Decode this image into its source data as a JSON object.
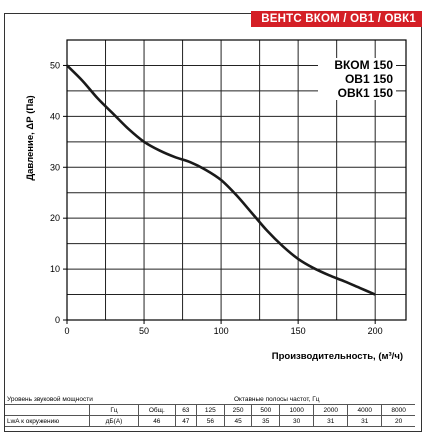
{
  "header_tag": "ВЕНТС ВКОМ / ОВ1 / ОВК1",
  "chart_data": {
    "type": "line",
    "xlabel": "Производительность, (м³/ч)",
    "ylabel": "Давление, ΔР (Па)",
    "xlim": [
      0,
      220
    ],
    "ylim": [
      0,
      55
    ],
    "x_ticks": [
      "0",
      "50",
      "100",
      "150",
      "200"
    ],
    "y_ticks": [
      "0",
      "10",
      "20",
      "30",
      "40",
      "50"
    ],
    "legend": [
      "ВКОМ 150",
      "ОВ1 150",
      "ОВК1 150"
    ],
    "legend_position": "top-right",
    "grid": true,
    "series": [
      {
        "x": [
          0,
          10,
          20,
          30,
          40,
          50,
          60,
          70,
          80,
          90,
          100,
          110,
          120,
          130,
          140,
          150,
          160,
          170,
          180,
          190,
          200
        ],
        "y": [
          50,
          47,
          43.5,
          40.5,
          37.5,
          35,
          33.3,
          32,
          31,
          29.5,
          27.5,
          24.5,
          21,
          17.5,
          14.5,
          12,
          10.2,
          8.8,
          7.6,
          6.3,
          5
        ]
      }
    ]
  },
  "noise_table": {
    "title_left": "Уровень звуковой мощности",
    "title_right": "Октавные полосы частот, Гц",
    "hz_label": "Гц",
    "columns": [
      "Общ.",
      "63",
      "125",
      "250",
      "500",
      "1000",
      "2000",
      "4000",
      "8000"
    ],
    "row_label": "LwA к окружению",
    "row_unit": "дБ(А)",
    "values": [
      "46",
      "47",
      "56",
      "45",
      "35",
      "30",
      "31",
      "31",
      "20"
    ]
  }
}
